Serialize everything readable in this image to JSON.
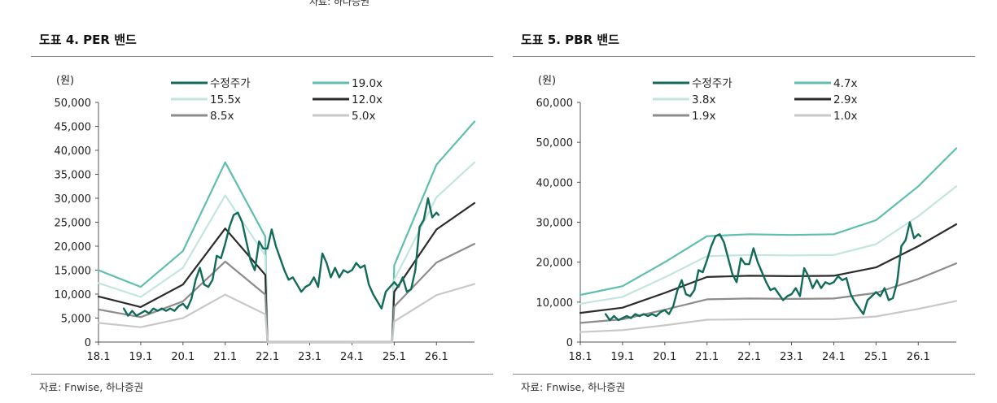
{
  "top_source": "자료: 하나증권",
  "chart_data": [
    {
      "type": "line",
      "title": "도표 4. PER 밴드",
      "source": "자료: Fnwise, 하나증권",
      "ylabel": "(원)",
      "xlabel": "",
      "ylim": [
        0,
        50000
      ],
      "yticks": [
        0,
        5000,
        10000,
        15000,
        20000,
        25000,
        30000,
        35000,
        40000,
        45000,
        50000
      ],
      "ytick_labels": [
        "0",
        "5,000",
        "10,000",
        "15,000",
        "20,000",
        "25,000",
        "30,000",
        "35,000",
        "40,000",
        "45,000",
        "50,000"
      ],
      "xlim": [
        2018.0,
        2026.9
      ],
      "xticks": [
        2018.0,
        2019.0,
        2020.0,
        2021.0,
        2022.0,
        2023.0,
        2024.0,
        2025.0,
        2026.0
      ],
      "xtick_labels": [
        "18.1",
        "19.1",
        "20.1",
        "21.1",
        "22.1",
        "23.1",
        "24.1",
        "25.1",
        "26.1"
      ],
      "legend_position": "top",
      "grid": false,
      "series": [
        {
          "name": "19.0x",
          "color": "#5fbfae",
          "width": 2.2,
          "x": [
            2018.0,
            2019.0,
            2020.0,
            2021.0,
            2021.95,
            2022.0,
            2024.95,
            2025.0,
            2026.0,
            2026.9
          ],
          "y": [
            15000,
            11500,
            19000,
            37500,
            22000,
            0,
            0,
            16000,
            37000,
            46000
          ]
        },
        {
          "name": "15.5x",
          "color": "#c2e6df",
          "width": 2.2,
          "x": [
            2018.0,
            2019.0,
            2020.0,
            2021.0,
            2021.95,
            2022.0,
            2024.95,
            2025.0,
            2026.0,
            2026.9
          ],
          "y": [
            12300,
            9400,
            15500,
            30600,
            18000,
            0,
            0,
            13000,
            30200,
            37500
          ]
        },
        {
          "name": "12.0x",
          "color": "#2b2b2b",
          "width": 2.2,
          "x": [
            2018.0,
            2019.0,
            2020.0,
            2021.0,
            2021.95,
            2022.0,
            2024.95,
            2025.0,
            2026.0,
            2026.9
          ],
          "y": [
            9500,
            7300,
            12000,
            23700,
            14000,
            0,
            0,
            10500,
            23500,
            29000
          ]
        },
        {
          "name": "8.5x",
          "color": "#8c8c8c",
          "width": 2.2,
          "x": [
            2018.0,
            2019.0,
            2020.0,
            2021.0,
            2021.95,
            2022.0,
            2024.95,
            2025.0,
            2026.0,
            2026.9
          ],
          "y": [
            6800,
            5200,
            8500,
            16800,
            9900,
            0,
            0,
            7400,
            16600,
            20500
          ]
        },
        {
          "name": "5.0x",
          "color": "#c8c8c8",
          "width": 2.2,
          "x": [
            2018.0,
            2019.0,
            2020.0,
            2021.0,
            2021.95,
            2022.0,
            2024.95,
            2025.0,
            2026.0,
            2026.9
          ],
          "y": [
            4000,
            3100,
            5000,
            9900,
            5800,
            0,
            0,
            4300,
            9800,
            12100
          ]
        },
        {
          "name": "수정주가",
          "color": "#116b58",
          "width": 2.4,
          "x": [
            2018.6,
            2018.7,
            2018.8,
            2018.9,
            2019.0,
            2019.1,
            2019.2,
            2019.3,
            2019.4,
            2019.5,
            2019.6,
            2019.7,
            2019.8,
            2019.9,
            2020.0,
            2020.1,
            2020.2,
            2020.3,
            2020.4,
            2020.5,
            2020.6,
            2020.7,
            2020.8,
            2020.9,
            2021.0,
            2021.1,
            2021.2,
            2021.3,
            2021.4,
            2021.5,
            2021.6,
            2021.7,
            2021.8,
            2021.9,
            2022.0,
            2022.1,
            2022.2,
            2022.3,
            2022.4,
            2022.5,
            2022.6,
            2022.7,
            2022.8,
            2022.9,
            2023.0,
            2023.1,
            2023.2,
            2023.3,
            2023.4,
            2023.5,
            2023.6,
            2023.7,
            2023.8,
            2023.9,
            2024.0,
            2024.1,
            2024.2,
            2024.3,
            2024.4,
            2024.5,
            2024.6,
            2024.7,
            2024.8,
            2024.9,
            2025.0,
            2025.1,
            2025.2,
            2025.3,
            2025.4,
            2025.5,
            2025.6,
            2025.7,
            2025.8,
            2025.9,
            2026.0,
            2026.05
          ],
          "y": [
            7000,
            5500,
            6500,
            5500,
            6000,
            6500,
            6000,
            7000,
            6500,
            7000,
            6500,
            7000,
            6500,
            7500,
            8000,
            7000,
            9000,
            13000,
            15500,
            12000,
            11500,
            13000,
            18000,
            17500,
            20500,
            24000,
            26500,
            27000,
            25000,
            21000,
            17000,
            15000,
            21000,
            19500,
            19500,
            23500,
            20000,
            17500,
            15000,
            13000,
            13500,
            12000,
            10500,
            11500,
            12000,
            13500,
            11500,
            18500,
            16500,
            13500,
            15500,
            13500,
            15000,
            14500,
            15000,
            16500,
            15500,
            16000,
            12000,
            10000,
            8500,
            7000,
            10500,
            11500,
            12500,
            11500,
            13500,
            10500,
            11000,
            15000,
            24000,
            25500,
            30000,
            26000,
            27000,
            26500
          ]
        }
      ]
    },
    {
      "type": "line",
      "title": "도표 5. PBR 밴드",
      "source": "자료: Fnwise, 하나증권",
      "ylabel": "(원)",
      "xlabel": "",
      "ylim": [
        0,
        60000
      ],
      "yticks": [
        0,
        10000,
        20000,
        30000,
        40000,
        50000,
        60000
      ],
      "ytick_labels": [
        "0",
        "10,000",
        "20,000",
        "30,000",
        "40,000",
        "50,000",
        "60,000"
      ],
      "xlim": [
        2018.0,
        2026.9
      ],
      "xticks": [
        2018.0,
        2019.0,
        2020.0,
        2021.0,
        2022.0,
        2023.0,
        2024.0,
        2025.0,
        2026.0
      ],
      "xtick_labels": [
        "18.1",
        "19.1",
        "20.1",
        "21.1",
        "22.1",
        "23.1",
        "24.1",
        "25.1",
        "26.1"
      ],
      "legend_position": "top",
      "grid": false,
      "series": [
        {
          "name": "4.7x",
          "color": "#5fbfae",
          "width": 2.2,
          "x": [
            2018.0,
            2019.0,
            2020.0,
            2021.0,
            2022.0,
            2023.0,
            2024.0,
            2025.0,
            2026.0,
            2026.9
          ],
          "y": [
            11800,
            14000,
            20000,
            26500,
            27000,
            26800,
            27000,
            30500,
            39000,
            48500
          ]
        },
        {
          "name": "3.8x",
          "color": "#c2e6df",
          "width": 2.2,
          "x": [
            2018.0,
            2019.0,
            2020.0,
            2021.0,
            2022.0,
            2023.0,
            2024.0,
            2025.0,
            2026.0,
            2026.9
          ],
          "y": [
            9600,
            11300,
            16200,
            21500,
            21800,
            21700,
            21800,
            24500,
            31500,
            39000
          ]
        },
        {
          "name": "2.9x",
          "color": "#2b2b2b",
          "width": 2.2,
          "x": [
            2018.0,
            2019.0,
            2020.0,
            2021.0,
            2022.0,
            2023.0,
            2024.0,
            2025.0,
            2026.0,
            2026.9
          ],
          "y": [
            7300,
            8600,
            12300,
            16300,
            16600,
            16500,
            16600,
            18700,
            24000,
            29500
          ]
        },
        {
          "name": "1.9x",
          "color": "#8c8c8c",
          "width": 2.2,
          "x": [
            2018.0,
            2019.0,
            2020.0,
            2021.0,
            2022.0,
            2023.0,
            2024.0,
            2025.0,
            2026.0,
            2026.9
          ],
          "y": [
            4800,
            5700,
            8100,
            10700,
            10900,
            10800,
            10900,
            12300,
            15800,
            19700
          ]
        },
        {
          "name": "1.0x",
          "color": "#c8c8c8",
          "width": 2.2,
          "x": [
            2018.0,
            2019.0,
            2020.0,
            2021.0,
            2022.0,
            2023.0,
            2024.0,
            2025.0,
            2026.0,
            2026.9
          ],
          "y": [
            2500,
            3000,
            4200,
            5600,
            5700,
            5700,
            5700,
            6400,
            8300,
            10300
          ]
        },
        {
          "name": "수정주가",
          "color": "#116b58",
          "width": 2.4,
          "x": [
            2018.6,
            2018.7,
            2018.8,
            2018.9,
            2019.0,
            2019.1,
            2019.2,
            2019.3,
            2019.4,
            2019.5,
            2019.6,
            2019.7,
            2019.8,
            2019.9,
            2020.0,
            2020.1,
            2020.2,
            2020.3,
            2020.4,
            2020.5,
            2020.6,
            2020.7,
            2020.8,
            2020.9,
            2021.0,
            2021.1,
            2021.2,
            2021.3,
            2021.4,
            2021.5,
            2021.6,
            2021.7,
            2021.8,
            2021.9,
            2022.0,
            2022.1,
            2022.2,
            2022.3,
            2022.4,
            2022.5,
            2022.6,
            2022.7,
            2022.8,
            2022.9,
            2023.0,
            2023.1,
            2023.2,
            2023.3,
            2023.4,
            2023.5,
            2023.6,
            2023.7,
            2023.8,
            2023.9,
            2024.0,
            2024.1,
            2024.2,
            2024.3,
            2024.4,
            2024.5,
            2024.6,
            2024.7,
            2024.8,
            2024.9,
            2025.0,
            2025.1,
            2025.2,
            2025.3,
            2025.4,
            2025.5,
            2025.6,
            2025.7,
            2025.8,
            2025.9,
            2026.0,
            2026.05
          ],
          "y": [
            7000,
            5500,
            6500,
            5500,
            6000,
            6500,
            6000,
            7000,
            6500,
            7000,
            6500,
            7000,
            6500,
            7500,
            8000,
            7000,
            9000,
            13000,
            15500,
            12000,
            11500,
            13000,
            18000,
            17500,
            20500,
            24000,
            26500,
            27000,
            25000,
            21000,
            17000,
            15000,
            21000,
            19500,
            19500,
            23500,
            20000,
            17500,
            15000,
            13000,
            13500,
            12000,
            10500,
            11500,
            12000,
            13500,
            11500,
            18500,
            16500,
            13500,
            15500,
            13500,
            15000,
            14500,
            15000,
            16500,
            15500,
            16000,
            12000,
            10000,
            8500,
            7000,
            10500,
            11500,
            12500,
            11500,
            13500,
            10500,
            11000,
            15000,
            24000,
            25500,
            30000,
            26000,
            27000,
            26500
          ]
        }
      ]
    }
  ]
}
